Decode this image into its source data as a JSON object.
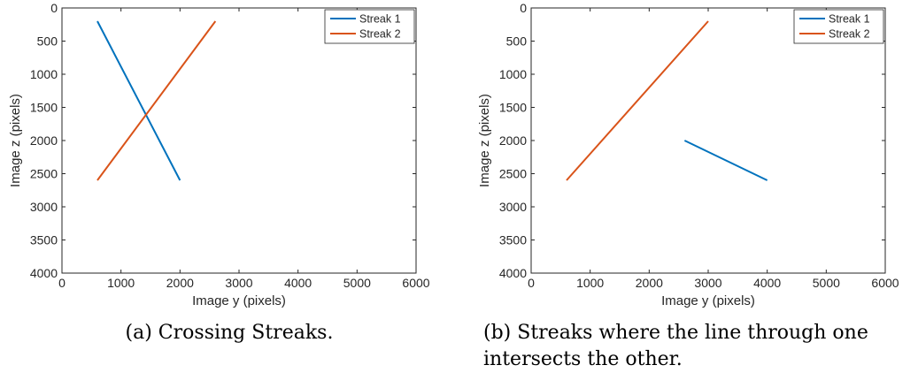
{
  "chart_data": [
    {
      "type": "line",
      "caption": "(a) Crossing Streaks.",
      "xlabel": "Image y (pixels)",
      "ylabel": "Image z (pixels)",
      "xlim": [
        0,
        6000
      ],
      "ylim": [
        0,
        4000
      ],
      "y_reversed": true,
      "x_ticks": [
        0,
        1000,
        2000,
        3000,
        4000,
        5000,
        6000
      ],
      "y_ticks": [
        0,
        500,
        1000,
        1500,
        2000,
        2500,
        3000,
        3500,
        4000
      ],
      "grid": false,
      "legend_placement": "top-right",
      "series": [
        {
          "name": "Streak 1",
          "color": "#0072bd",
          "x": [
            600,
            2000
          ],
          "y": [
            200,
            2600
          ]
        },
        {
          "name": "Streak 2",
          "color": "#d95319",
          "x": [
            600,
            2600
          ],
          "y": [
            2600,
            200
          ]
        }
      ]
    },
    {
      "type": "line",
      "caption": "(b) Streaks where the line through one intersects the other.",
      "xlabel": "Image y (pixels)",
      "ylabel": "Image z (pixels)",
      "xlim": [
        0,
        6000
      ],
      "ylim": [
        0,
        4000
      ],
      "y_reversed": true,
      "x_ticks": [
        0,
        1000,
        2000,
        3000,
        4000,
        5000,
        6000
      ],
      "y_ticks": [
        0,
        500,
        1000,
        1500,
        2000,
        2500,
        3000,
        3500,
        4000
      ],
      "grid": false,
      "legend_placement": "top-right",
      "series": [
        {
          "name": "Streak 1",
          "color": "#0072bd",
          "x": [
            2600,
            4000
          ],
          "y": [
            2000,
            2600
          ]
        },
        {
          "name": "Streak 2",
          "color": "#d95319",
          "x": [
            600,
            3000
          ],
          "y": [
            2600,
            200
          ]
        }
      ]
    }
  ]
}
